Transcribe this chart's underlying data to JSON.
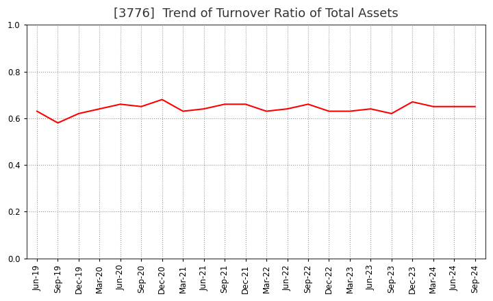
{
  "title": "[3776]  Trend of Turnover Ratio of Total Assets",
  "labels": [
    "Jun-19",
    "Sep-19",
    "Dec-19",
    "Mar-20",
    "Jun-20",
    "Sep-20",
    "Dec-20",
    "Mar-21",
    "Jun-21",
    "Sep-21",
    "Dec-21",
    "Mar-22",
    "Jun-22",
    "Sep-22",
    "Dec-22",
    "Mar-23",
    "Jun-23",
    "Sep-23",
    "Dec-23",
    "Mar-24",
    "Jun-24",
    "Sep-24"
  ],
  "values": [
    0.63,
    0.58,
    0.62,
    0.64,
    0.66,
    0.65,
    0.68,
    0.63,
    0.64,
    0.66,
    0.66,
    0.63,
    0.64,
    0.66,
    0.63,
    0.63,
    0.64,
    0.62,
    0.67,
    0.65,
    0.65,
    0.65
  ],
  "line_color": "#FF0000",
  "line_width": 1.5,
  "ylim": [
    0.0,
    1.0
  ],
  "yticks": [
    0.0,
    0.2,
    0.4,
    0.6,
    0.8,
    1.0
  ],
  "background_color": "#FFFFFF",
  "grid_color": "#999999",
  "title_fontsize": 13,
  "title_color": "#333333",
  "tick_fontsize": 8.5
}
